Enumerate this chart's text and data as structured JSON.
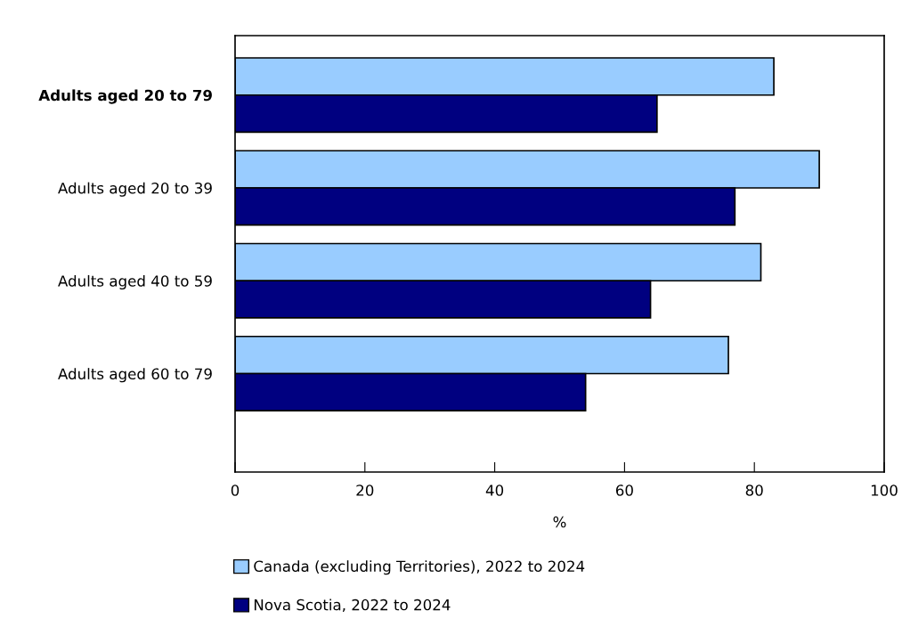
{
  "chart_data": {
    "type": "bar",
    "orientation": "horizontal",
    "xlabel": "%",
    "categories": [
      "Adults aged 20 to 79",
      "Adults aged 20 to 39",
      "Adults aged 40 to 59",
      "Adults aged 60 to 79"
    ],
    "series": [
      {
        "name": "Canada (excluding Territories), 2022 to 2024",
        "color": "#99ccff",
        "values": [
          83,
          90,
          81,
          76
        ]
      },
      {
        "name": "Nova Scotia, 2022 to 2024",
        "color": "#000080",
        "values": [
          65,
          77,
          64,
          54
        ]
      }
    ],
    "xlim": [
      0,
      100
    ],
    "xticks": [
      0,
      20,
      40,
      60,
      80,
      100
    ],
    "grid": false,
    "legend": "bottom"
  }
}
